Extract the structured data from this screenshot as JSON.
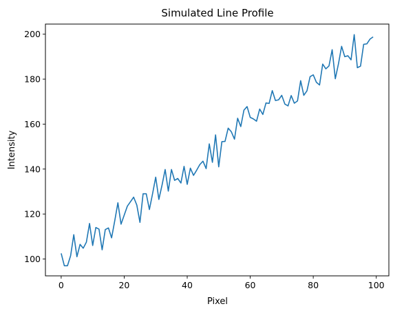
{
  "chart_data": {
    "type": "line",
    "title": "Simulated Line Profile",
    "xlabel": "Pixel",
    "ylabel": "Intensity",
    "xlim": [
      -5,
      104
    ],
    "ylim": [
      92.5,
      204.5
    ],
    "xticks": [
      0,
      20,
      40,
      60,
      80,
      100
    ],
    "yticks": [
      100,
      120,
      140,
      160,
      180,
      200
    ],
    "grid": false,
    "series": [
      {
        "color": "#1f77b4",
        "x": [
          0,
          1,
          2,
          3,
          4,
          5,
          6,
          7,
          8,
          9,
          10,
          11,
          12,
          13,
          14,
          15,
          16,
          17,
          18,
          19,
          20,
          21,
          22,
          23,
          24,
          25,
          26,
          27,
          28,
          29,
          30,
          31,
          32,
          33,
          34,
          35,
          36,
          37,
          38,
          39,
          40,
          41,
          42,
          43,
          44,
          45,
          46,
          47,
          48,
          49,
          50,
          51,
          52,
          53,
          54,
          55,
          56,
          57,
          58,
          59,
          60,
          61,
          62,
          63,
          64,
          65,
          66,
          67,
          68,
          69,
          70,
          71,
          72,
          73,
          74,
          75,
          76,
          77,
          78,
          79,
          80,
          81,
          82,
          83,
          84,
          85,
          86,
          87,
          88,
          89,
          90,
          91,
          92,
          93,
          94,
          95,
          96,
          97,
          98,
          99
        ],
        "y": [
          102.5,
          97,
          97,
          101.5,
          110.8,
          101,
          106.5,
          104.8,
          107.5,
          115.8,
          106,
          114,
          113.3,
          104.1,
          113.1,
          113.8,
          109.4,
          117,
          125,
          115.5,
          119.5,
          123.5,
          125.5,
          127.5,
          124,
          116.3,
          129,
          129,
          122,
          129,
          136.4,
          126.5,
          132.8,
          139.8,
          130.2,
          139.8,
          135,
          135.8,
          133.8,
          141.2,
          133.2,
          140.4,
          137.2,
          139.5,
          142,
          143.5,
          140.2,
          151.2,
          143,
          155.2,
          141,
          152.2,
          152.3,
          158.2,
          156.6,
          153.3,
          162.6,
          158.9,
          166.2,
          167.8,
          163,
          162.3,
          161.3,
          166.7,
          164.3,
          169.4,
          169.2,
          174.9,
          170.5,
          170.8,
          172.8,
          168.9,
          168.1,
          172.7,
          169.3,
          170.3,
          179.3,
          172.8,
          174.8,
          181.1,
          181.9,
          178.6,
          177.4,
          186.7,
          184.6,
          185.9,
          193.1,
          180.2,
          186.8,
          194.6,
          190,
          190.4,
          188.6,
          199.8,
          185.1,
          185.8,
          195.5,
          195.7,
          197.8,
          198.8
        ]
      }
    ]
  }
}
